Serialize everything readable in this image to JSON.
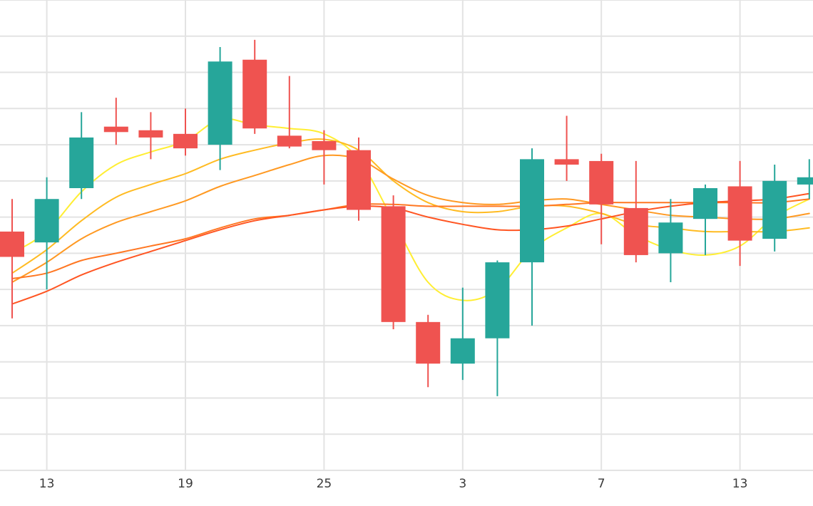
{
  "chart_data": {
    "type": "candlestick",
    "title": "",
    "xlabel": "",
    "ylabel": "",
    "grid": true,
    "legend": "none",
    "y_labels_visible": false,
    "ylim": [
      0,
      13
    ],
    "x_tick_labels": [
      "13",
      "19",
      "25",
      "3",
      "7",
      "13"
    ],
    "x_tick_slots": [
      1,
      5,
      9,
      13,
      17,
      21
    ],
    "colors": {
      "up": "#26a69a",
      "down": "#ef5350",
      "ma_lines": [
        "#ffee33",
        "#ffbb22",
        "#ff9922",
        "#ff7722",
        "#ff5522"
      ]
    },
    "candles": [
      {
        "open": 6.6,
        "high": 7.5,
        "low": 4.2,
        "close": 5.9,
        "dir": "down"
      },
      {
        "open": 6.3,
        "high": 8.1,
        "low": 5.0,
        "close": 7.5,
        "dir": "up"
      },
      {
        "open": 7.8,
        "high": 9.9,
        "low": 7.5,
        "close": 9.2,
        "dir": "up"
      },
      {
        "open": 9.5,
        "high": 10.3,
        "low": 9.0,
        "close": 9.35,
        "dir": "down"
      },
      {
        "open": 9.4,
        "high": 9.9,
        "low": 8.6,
        "close": 9.2,
        "dir": "down"
      },
      {
        "open": 9.3,
        "high": 10.0,
        "low": 8.7,
        "close": 8.9,
        "dir": "down"
      },
      {
        "open": 9.0,
        "high": 11.7,
        "low": 8.3,
        "close": 11.3,
        "dir": "up"
      },
      {
        "open": 11.35,
        "high": 11.9,
        "low": 9.3,
        "close": 9.45,
        "dir": "down"
      },
      {
        "open": 9.25,
        "high": 10.9,
        "low": 8.9,
        "close": 8.95,
        "dir": "down"
      },
      {
        "open": 9.1,
        "high": 9.4,
        "low": 7.9,
        "close": 8.85,
        "dir": "down"
      },
      {
        "open": 8.85,
        "high": 9.2,
        "low": 6.9,
        "close": 7.2,
        "dir": "down"
      },
      {
        "open": 7.3,
        "high": 7.6,
        "low": 3.9,
        "close": 4.1,
        "dir": "down"
      },
      {
        "open": 4.1,
        "high": 4.3,
        "low": 2.3,
        "close": 2.95,
        "dir": "down"
      },
      {
        "open": 2.95,
        "high": 5.05,
        "low": 2.5,
        "close": 3.65,
        "dir": "up"
      },
      {
        "open": 3.65,
        "high": 5.8,
        "low": 2.05,
        "close": 5.75,
        "dir": "up"
      },
      {
        "open": 5.75,
        "high": 8.9,
        "low": 4.0,
        "close": 8.6,
        "dir": "up"
      },
      {
        "open": 8.6,
        "high": 9.8,
        "low": 8.0,
        "close": 8.45,
        "dir": "down"
      },
      {
        "open": 8.55,
        "high": 8.75,
        "low": 6.25,
        "close": 7.35,
        "dir": "down"
      },
      {
        "open": 7.25,
        "high": 8.55,
        "low": 5.75,
        "close": 5.95,
        "dir": "down"
      },
      {
        "open": 6.0,
        "high": 7.5,
        "low": 5.2,
        "close": 6.85,
        "dir": "up"
      },
      {
        "open": 6.95,
        "high": 7.9,
        "low": 5.95,
        "close": 7.8,
        "dir": "up"
      },
      {
        "open": 7.85,
        "high": 8.55,
        "low": 5.65,
        "close": 6.35,
        "dir": "down"
      },
      {
        "open": 6.4,
        "high": 8.45,
        "low": 6.05,
        "close": 8.0,
        "dir": "up"
      },
      {
        "open": 7.9,
        "high": 8.6,
        "low": 7.5,
        "close": 8.1,
        "dir": "up"
      }
    ],
    "series": [
      {
        "values": [
          6.0,
          6.6,
          7.7,
          8.45,
          8.8,
          9.1,
          9.7,
          9.55,
          9.45,
          9.3,
          8.6,
          6.9,
          5.2,
          4.7,
          5.0,
          6.1,
          6.7,
          7.1,
          6.5,
          6.1,
          5.95,
          6.2,
          7.0,
          7.5
        ]
      },
      {
        "values": [
          5.45,
          6.1,
          6.9,
          7.55,
          7.9,
          8.2,
          8.6,
          8.85,
          9.05,
          9.15,
          8.85,
          8.0,
          7.4,
          7.15,
          7.15,
          7.3,
          7.3,
          7.1,
          6.8,
          6.7,
          6.6,
          6.6,
          6.6,
          6.7
        ]
      },
      {
        "values": [
          5.2,
          5.75,
          6.4,
          6.85,
          7.15,
          7.45,
          7.85,
          8.15,
          8.45,
          8.7,
          8.6,
          8.05,
          7.6,
          7.4,
          7.35,
          7.45,
          7.5,
          7.35,
          7.2,
          7.05,
          7.0,
          6.95,
          6.95,
          7.1
        ]
      },
      {
        "values": [
          5.3,
          5.45,
          5.8,
          6.0,
          6.2,
          6.4,
          6.7,
          6.95,
          7.05,
          7.2,
          7.35,
          7.35,
          7.3,
          7.3,
          7.3,
          7.3,
          7.35,
          7.4,
          7.4,
          7.4,
          7.4,
          7.4,
          7.4,
          7.5
        ]
      },
      {
        "values": [
          4.6,
          4.95,
          5.4,
          5.75,
          6.05,
          6.35,
          6.65,
          6.9,
          7.05,
          7.2,
          7.3,
          7.25,
          7.0,
          6.8,
          6.65,
          6.65,
          6.75,
          6.95,
          7.15,
          7.3,
          7.4,
          7.45,
          7.5,
          7.65
        ]
      }
    ]
  }
}
